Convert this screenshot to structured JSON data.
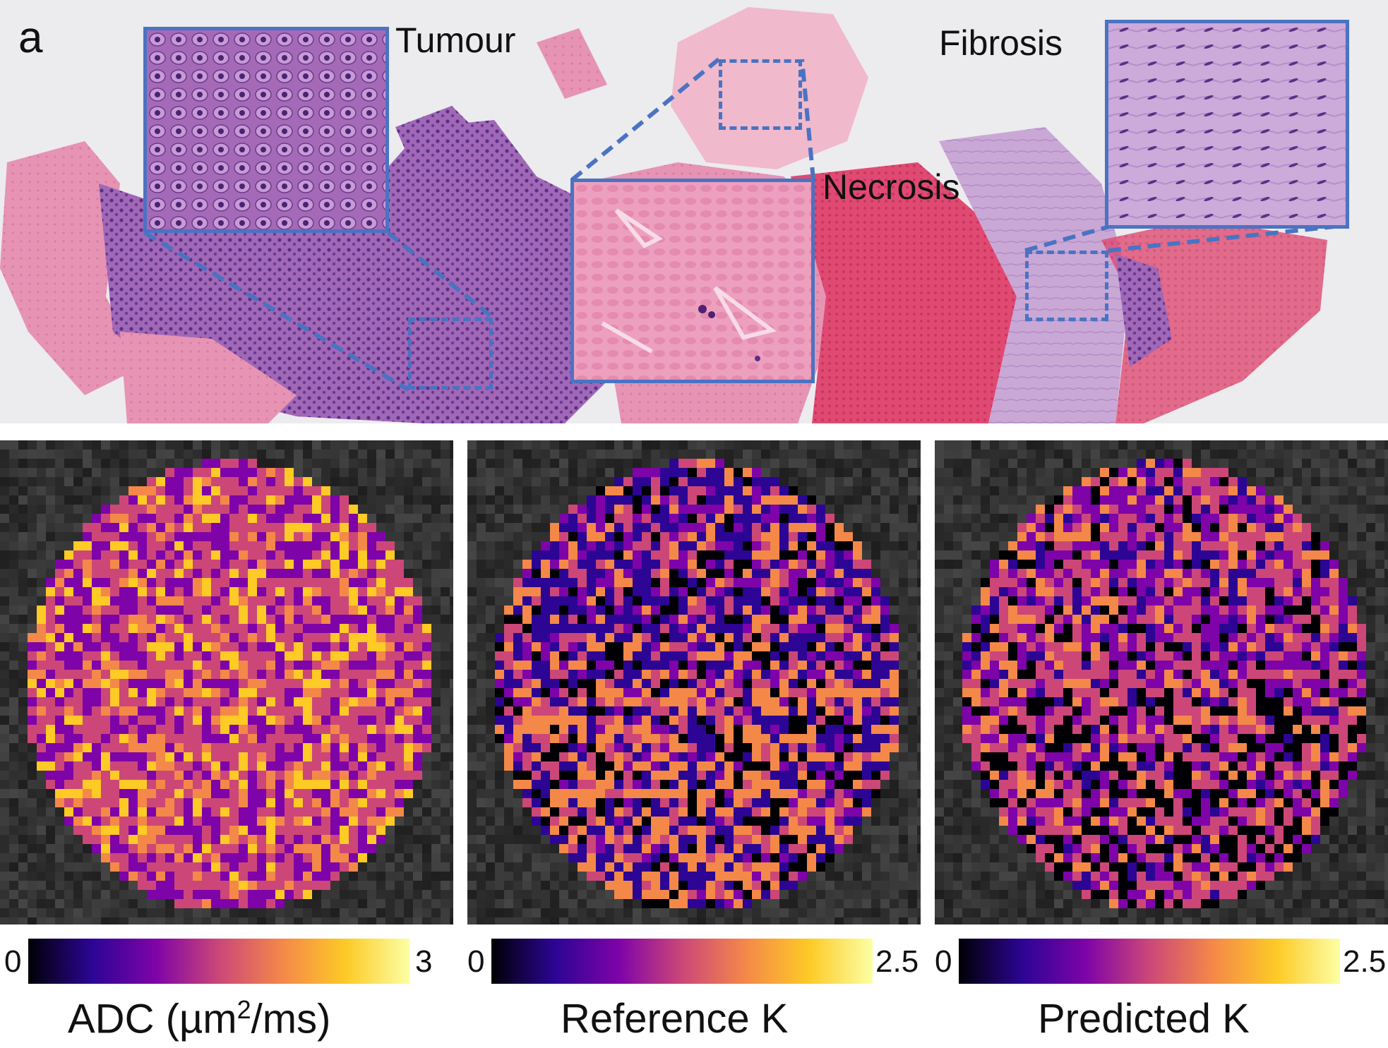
{
  "panel_letter": "a",
  "histology": {
    "labels": {
      "tumour": "Tumour",
      "necrosis": "Necrosis",
      "fibrosis": "Fibrosis"
    },
    "colors": {
      "tumour_tissue": "#9b5fae",
      "necrosis_tissue": "#e38fb0",
      "fibrosis_tissue": "#c7a6d4",
      "blood": "#e24a73",
      "outline": "#4a73c2"
    }
  },
  "maps": [
    {
      "id": "adc",
      "caption_main": "ADC (µm",
      "caption_sup": "2",
      "caption_end": "/ms)",
      "min_label": "0",
      "max_label": "3",
      "dominant_color": "#c8307a"
    },
    {
      "id": "reference-k",
      "caption_main": "Reference K",
      "caption_sup": "",
      "caption_end": "",
      "min_label": "0",
      "max_label": "2.5",
      "dominant_color": "#6a1bd6"
    },
    {
      "id": "predicted-k",
      "caption_main": "Predicted K",
      "caption_sup": "",
      "caption_end": "",
      "min_label": "0",
      "max_label": "2.5",
      "dominant_color": "#7a20d0"
    }
  ],
  "colormap": [
    "#000004",
    "#2c0594",
    "#7e03a8",
    "#cc4778",
    "#f48849",
    "#fdca26",
    "#fcffa4"
  ]
}
